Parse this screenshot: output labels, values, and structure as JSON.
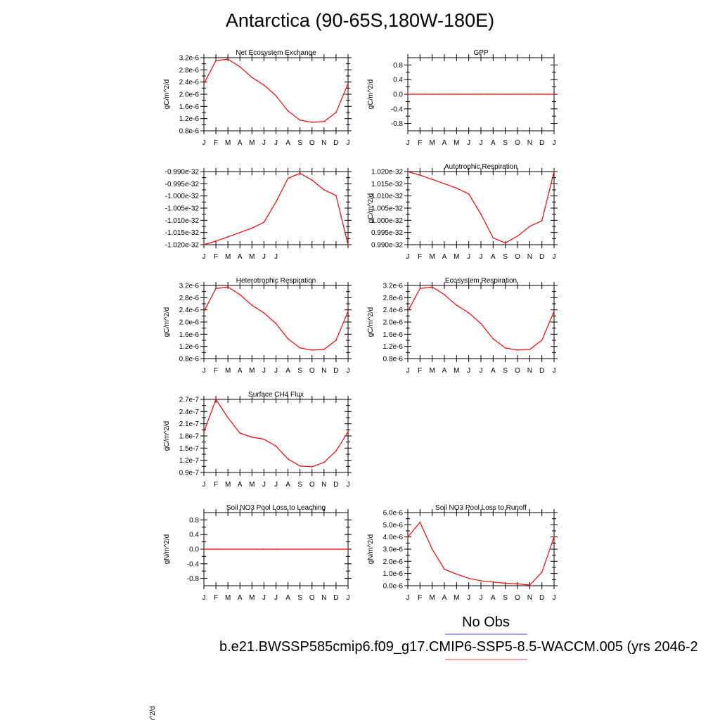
{
  "page": {
    "title": "Antarctica (90-65S,180W-180E)",
    "legend_obs": "No Obs",
    "legend_case": "b.e21.BWSSP585cmip6.f09_g17.CMIP6-SSP5-8.5-WACCM.005 (yrs 2046-2",
    "stray_label": "m^2/d",
    "colors": {
      "obs_line": "#8080ff",
      "case_line": "#ff8080",
      "series": "#ff0000"
    }
  },
  "months": [
    "J",
    "F",
    "M",
    "A",
    "M",
    "J",
    "J",
    "A",
    "S",
    "O",
    "N",
    "D",
    "J"
  ],
  "chart_data": [
    {
      "type": "line",
      "title": "Net Ecosystem Exchange",
      "ylabel": "gC/m^2/d",
      "ylim": [
        8e-07,
        3.2e-06
      ],
      "yticks": [
        "3.2e-6",
        "2.8e-6",
        "2.4e-6",
        "2.0e-6",
        "1.6e-6",
        "1.2e-6",
        "0.8e-6"
      ],
      "ytick_values": [
        3.2e-06,
        2.8e-06,
        2.4e-06,
        2e-06,
        1.6e-06,
        1.2e-06,
        8e-07
      ],
      "x": [
        "J",
        "F",
        "M",
        "A",
        "M",
        "J",
        "J",
        "A",
        "S",
        "O",
        "N",
        "D",
        "J"
      ],
      "values": [
        2.35e-06,
        3.1e-06,
        3.15e-06,
        2.9e-06,
        2.55e-06,
        2.3e-06,
        1.95e-06,
        1.45e-06,
        1.15e-06,
        1.08e-06,
        1.1e-06,
        1.4e-06,
        2.35e-06
      ]
    },
    {
      "type": "line",
      "title": "GPP",
      "ylabel": "gC/m^2/d",
      "ylim": [
        -1.0,
        1.0
      ],
      "yticks": [
        "0.8",
        "0.4",
        "0.0",
        "-0.4",
        "-0.8"
      ],
      "ytick_values": [
        0.8,
        0.4,
        0.0,
        -0.4,
        -0.8
      ],
      "x": [
        "J",
        "F",
        "M",
        "A",
        "M",
        "J",
        "J",
        "A",
        "S",
        "O",
        "N",
        "D",
        "J"
      ],
      "values": [
        0,
        0,
        0,
        0,
        0,
        0,
        0,
        0,
        0,
        0,
        0,
        0,
        0
      ]
    },
    {
      "type": "line",
      "title": "",
      "ylabel": "",
      "ylim": [
        -1.02e-32,
        -9.9e-33
      ],
      "yticks": [
        "-0.990e-32",
        "-0.995e-32",
        "-1.000e-32",
        "-1.005e-32",
        "-1.010e-32",
        "-1.015e-32",
        "-1.020e-32"
      ],
      "ytick_values": [
        -9.9e-33,
        -9.95e-33,
        -1e-32,
        -1.005e-32,
        -1.01e-32,
        -1.015e-32,
        -1.02e-32
      ],
      "xtick_labels": [
        "J",
        "F",
        "M",
        "A",
        "M",
        "J",
        "J",
        "",
        "",
        "",
        "",
        "",
        ""
      ],
      "x": [
        "J",
        "F",
        "M",
        "A",
        "M",
        "J",
        "J",
        "A",
        "S",
        "O",
        "N",
        "D",
        "J"
      ],
      "values": [
        -1.02e-32,
        -1.0185e-32,
        -1.0168e-32,
        -1.015e-32,
        -1.0132e-32,
        -1.0108e-32,
        -1.0025e-32,
        -9.928e-33,
        -9.907e-33,
        -9.935e-33,
        -9.975e-33,
        -9.998e-33,
        -1.02e-32
      ]
    },
    {
      "type": "line",
      "title": "Autotrophic Respiration",
      "ylabel": "gC/m^2/d",
      "ylim": [
        9.9e-33,
        1.02e-32
      ],
      "yticks": [
        "1.020e-32",
        "1.015e-32",
        "1.010e-32",
        "1.005e-32",
        "1.000e-32",
        "0.995e-32",
        "0.990e-32"
      ],
      "ytick_values": [
        1.02e-32,
        1.015e-32,
        1.01e-32,
        1.005e-32,
        1e-32,
        9.95e-33,
        9.9e-33
      ],
      "x": [
        "J",
        "F",
        "M",
        "A",
        "M",
        "J",
        "J",
        "A",
        "S",
        "O",
        "N",
        "D",
        "J"
      ],
      "values": [
        1.02e-32,
        1.0185e-32,
        1.0168e-32,
        1.015e-32,
        1.0132e-32,
        1.0108e-32,
        1.0025e-32,
        9.928e-33,
        9.907e-33,
        9.935e-33,
        9.975e-33,
        9.998e-33,
        1.02e-32
      ]
    },
    {
      "type": "line",
      "title": "Heterotrophic Respiration",
      "ylabel": "gC/m^2/d",
      "ylim": [
        8e-07,
        3.2e-06
      ],
      "yticks": [
        "3.2e-6",
        "2.8e-6",
        "2.4e-6",
        "2.0e-6",
        "1.6e-6",
        "1.2e-6",
        "0.8e-6"
      ],
      "ytick_values": [
        3.2e-06,
        2.8e-06,
        2.4e-06,
        2e-06,
        1.6e-06,
        1.2e-06,
        8e-07
      ],
      "x": [
        "J",
        "F",
        "M",
        "A",
        "M",
        "J",
        "J",
        "A",
        "S",
        "O",
        "N",
        "D",
        "J"
      ],
      "values": [
        2.35e-06,
        3.1e-06,
        3.15e-06,
        2.9e-06,
        2.55e-06,
        2.3e-06,
        1.95e-06,
        1.45e-06,
        1.15e-06,
        1.08e-06,
        1.1e-06,
        1.4e-06,
        2.35e-06
      ]
    },
    {
      "type": "line",
      "title": "Ecosystem Respiration",
      "ylabel": "gC/m^2/d",
      "ylim": [
        8e-07,
        3.2e-06
      ],
      "yticks": [
        "3.2e-6",
        "2.8e-6",
        "2.4e-6",
        "2.0e-6",
        "1.6e-6",
        "1.2e-6",
        "0.8e-6"
      ],
      "ytick_values": [
        3.2e-06,
        2.8e-06,
        2.4e-06,
        2e-06,
        1.6e-06,
        1.2e-06,
        8e-07
      ],
      "x": [
        "J",
        "F",
        "M",
        "A",
        "M",
        "J",
        "J",
        "A",
        "S",
        "O",
        "N",
        "D",
        "J"
      ],
      "values": [
        2.35e-06,
        3.1e-06,
        3.15e-06,
        2.9e-06,
        2.55e-06,
        2.3e-06,
        1.95e-06,
        1.45e-06,
        1.15e-06,
        1.08e-06,
        1.1e-06,
        1.4e-06,
        2.35e-06
      ]
    },
    {
      "type": "line",
      "title": "Surface CH4 Flux",
      "ylabel": "gC/m^2/d",
      "ylim": [
        9e-08,
        2.7e-07
      ],
      "yticks": [
        "2.7e-7",
        "2.4e-7",
        "2.1e-7",
        "1.8e-7",
        "1.5e-7",
        "1.2e-7",
        "0.9e-7"
      ],
      "ytick_values": [
        2.7e-07,
        2.4e-07,
        2.1e-07,
        1.8e-07,
        1.5e-07,
        1.2e-07,
        9e-08
      ],
      "x": [
        "J",
        "F",
        "M",
        "A",
        "M",
        "J",
        "J",
        "A",
        "S",
        "O",
        "N",
        "D",
        "J"
      ],
      "values": [
        1.9e-07,
        2.7e-07,
        2.25e-07,
        1.87e-07,
        1.77e-07,
        1.72e-07,
        1.55e-07,
        1.23e-07,
        1.06e-07,
        1.04e-07,
        1.15e-07,
        1.43e-07,
        1.9e-07
      ]
    },
    {
      "type": "line",
      "title": "Soil NO3 Pool Loss to Leaching",
      "ylabel": "gN/m^2/d",
      "ylim": [
        -1.0,
        1.0
      ],
      "yticks": [
        "0.8",
        "0.4",
        "0.0",
        "-0.4",
        "-0.8"
      ],
      "ytick_values": [
        0.8,
        0.4,
        0.0,
        -0.4,
        -0.8
      ],
      "x": [
        "J",
        "F",
        "M",
        "A",
        "M",
        "J",
        "J",
        "A",
        "S",
        "O",
        "N",
        "D",
        "J"
      ],
      "values": [
        0,
        0,
        0,
        0,
        0,
        0,
        0,
        0,
        0,
        0,
        0,
        0,
        0
      ]
    },
    {
      "type": "line",
      "title": "Soil NO3 Pool Loss to Runoff",
      "ylabel": "gN/m^2/d",
      "ylim": [
        0.0,
        6e-06
      ],
      "yticks": [
        "6.0e-6",
        "5.0e-6",
        "4.0e-6",
        "3.0e-6",
        "2.0e-6",
        "1.0e-6",
        "0.0e-6"
      ],
      "ytick_values": [
        6e-06,
        5e-06,
        4e-06,
        3e-06,
        2e-06,
        1e-06,
        0.0
      ],
      "x": [
        "J",
        "F",
        "M",
        "A",
        "M",
        "J",
        "J",
        "A",
        "S",
        "O",
        "N",
        "D",
        "J"
      ],
      "values": [
        4e-06,
        5.2e-06,
        3e-06,
        1.35e-06,
        9.5e-07,
        6e-07,
        4e-07,
        3e-07,
        2e-07,
        1.5e-07,
        5e-08,
        1.1e-06,
        4e-06
      ]
    }
  ]
}
